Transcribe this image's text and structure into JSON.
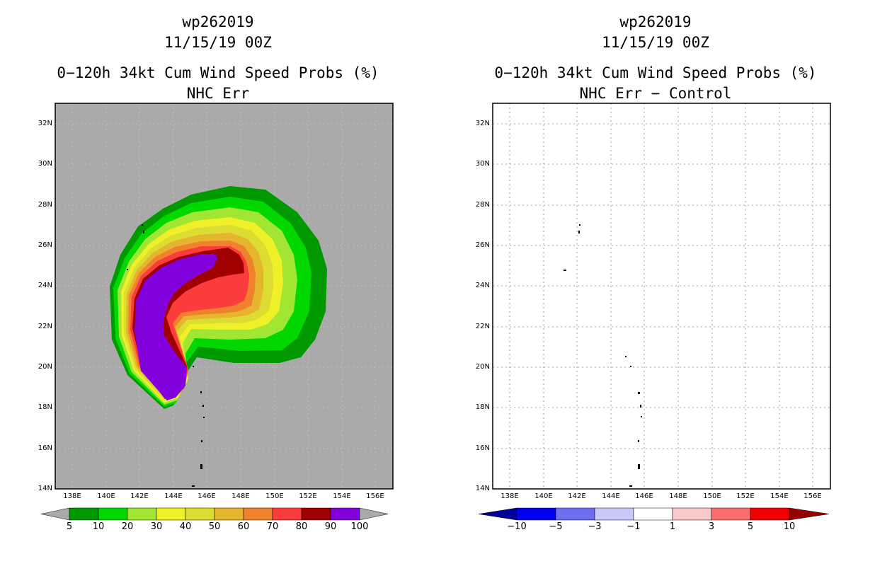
{
  "left_panel": {
    "storm_id": "wp262019",
    "datetime": "11/15/19 00Z",
    "product": "0−120h 34kt Cum Wind Speed Probs (%)",
    "subtitle": "NHC Err",
    "colorbar_labels": [
      "5",
      "10",
      "20",
      "30",
      "40",
      "50",
      "60",
      "70",
      "80",
      "90",
      "100"
    ],
    "colorbar_colors": [
      "#009a00",
      "#00d800",
      "#a0e632",
      "#f0f028",
      "#dcdc32",
      "#e6b42d",
      "#f0822d",
      "#fa3c3c",
      "#a00000",
      "#8200dc"
    ]
  },
  "right_panel": {
    "storm_id": "wp262019",
    "datetime": "11/15/19 00Z",
    "product": "0−120h 34kt Cum Wind Speed Probs (%)",
    "subtitle": "NHC Err − Control",
    "colorbar_labels": [
      "−10",
      "−5",
      "−3",
      "−1",
      "1",
      "3",
      "5",
      "10"
    ],
    "colorbar_colors": [
      "#000096",
      "#0000f0",
      "#6e6ef0",
      "#c8c8fa",
      "#ffffff",
      "#fac8c8",
      "#fa6e6e",
      "#f00000",
      "#960000"
    ]
  },
  "axes": {
    "lat_labels": [
      "32N",
      "30N",
      "28N",
      "26N",
      "24N",
      "22N",
      "20N",
      "18N",
      "16N",
      "14N"
    ],
    "lon_labels": [
      "138E",
      "140E",
      "142E",
      "144E",
      "146E",
      "148E",
      "150E",
      "152E",
      "154E",
      "156E"
    ]
  },
  "colors": {
    "land_mask": "#aaaaaa",
    "grid": "#a0a0a0"
  }
}
